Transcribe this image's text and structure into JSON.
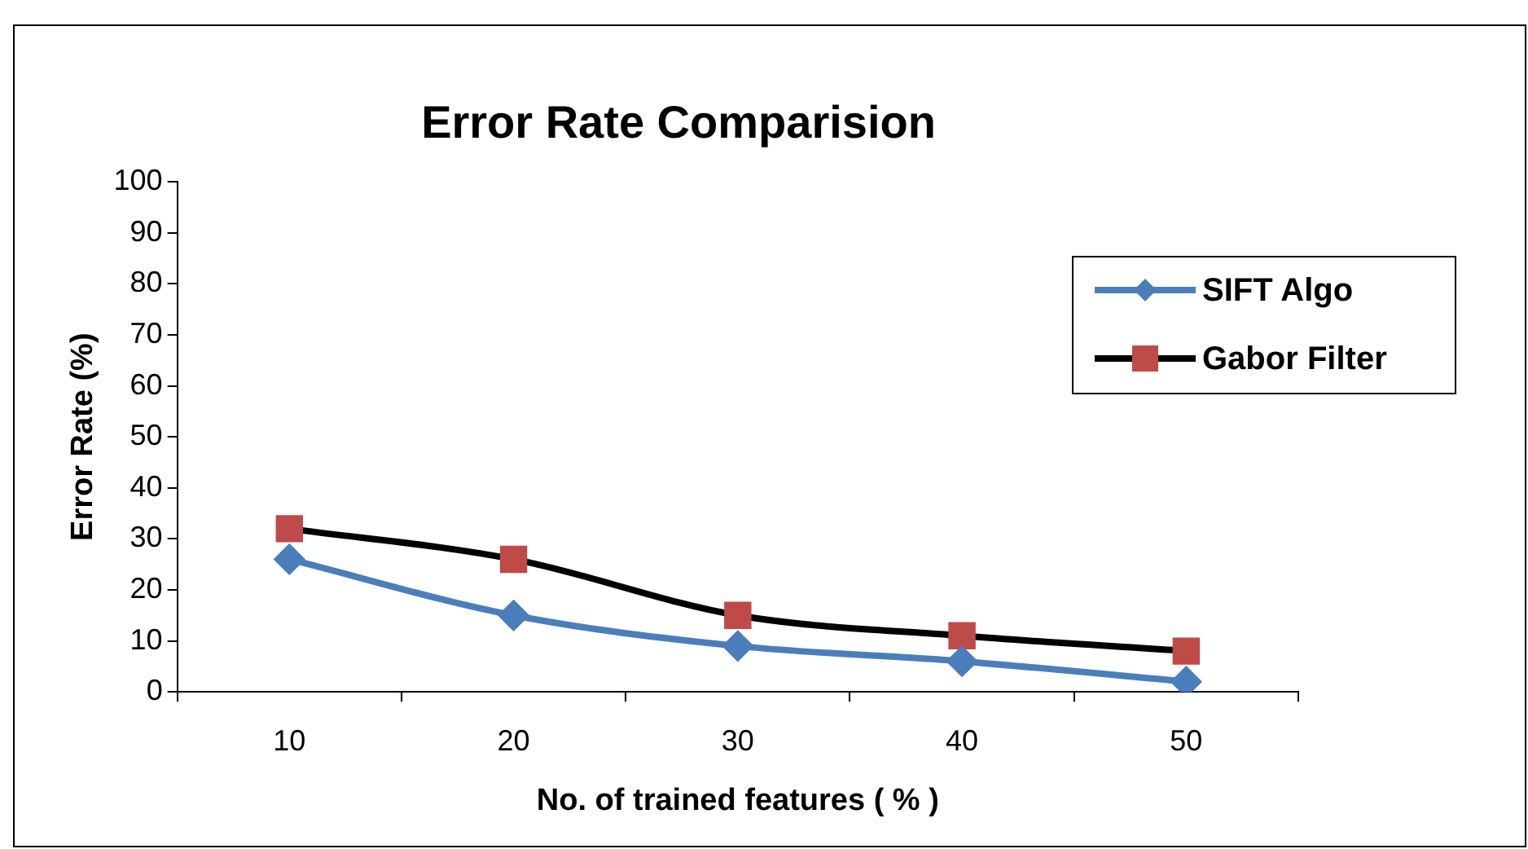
{
  "chart_data": {
    "type": "line",
    "title": "Error Rate Comparision",
    "xlabel": "No. of trained features ( % )",
    "ylabel": "Error Rate (%)",
    "categories": [
      "10",
      "20",
      "30",
      "40",
      "50"
    ],
    "series": [
      {
        "name": "SIFT Algo",
        "color": "#4a7ebb",
        "marker": "diamond",
        "values": [
          26,
          15,
          9,
          6,
          2
        ]
      },
      {
        "name": "Gabor Filter",
        "color": "#000000",
        "marker": "square",
        "colors": [
          "#be4b48",
          "#be4b48",
          "#be4b48",
          "#be4b48",
          "#be4b48"
        ],
        "values": [
          32,
          26,
          15,
          11,
          8
        ]
      }
    ],
    "ylim": [
      0,
      100
    ],
    "yticks": [
      0,
      10,
      20,
      30,
      40,
      50,
      60,
      70,
      80,
      90,
      100
    ],
    "grid": false,
    "legend": "right"
  }
}
